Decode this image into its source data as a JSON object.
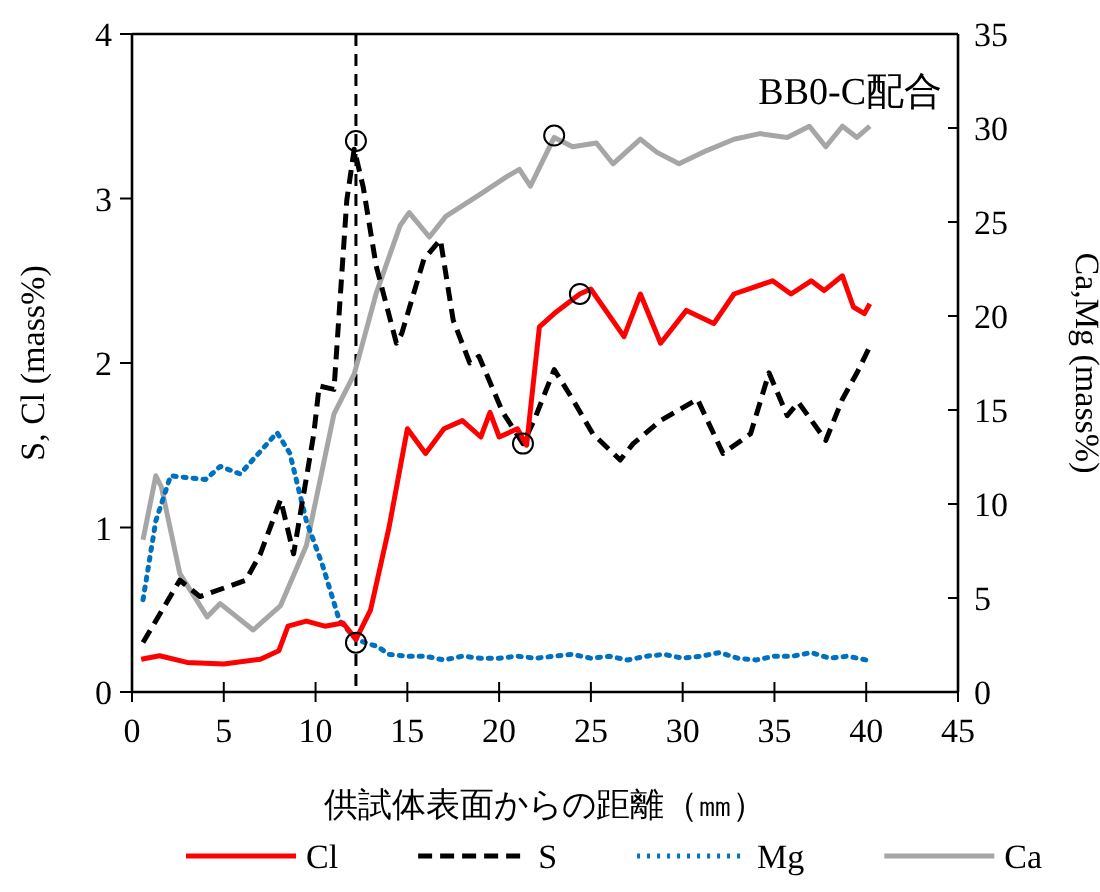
{
  "chart_data": {
    "type": "line",
    "title": "BB0-C配合",
    "xlabel": "供試体表面からの距離（㎜）",
    "ylabel": "S, Cl (mass%)",
    "y2label": "Ca,Mg (mass%)",
    "xlim": [
      0,
      45
    ],
    "xticks": [
      0,
      5,
      10,
      15,
      20,
      25,
      30,
      35,
      40,
      45
    ],
    "ylim": [
      0,
      4
    ],
    "yticks": [
      0,
      1,
      2,
      3,
      4
    ],
    "y2lim": [
      0,
      35
    ],
    "y2ticks": [
      0,
      5,
      10,
      15,
      20,
      25,
      30,
      35
    ],
    "grid": false,
    "legend": "bottom",
    "ref_lines": [
      {
        "axis": "x",
        "value": 12.2,
        "color": "#000000",
        "line_style": "dashed"
      }
    ],
    "series": [
      {
        "name": "Cl",
        "color": "#ff0000",
        "line_style": "solid",
        "x": [
          0.5,
          1.5,
          3,
          5,
          7,
          8,
          8.5,
          9.5,
          10.5,
          11.5,
          12.2,
          13,
          14,
          15,
          16,
          17,
          18,
          19,
          19.5,
          20,
          21,
          21.5,
          22.2,
          23,
          24.4,
          25,
          26.8,
          27.7,
          28.8,
          30.2,
          31.7,
          32.8,
          34.9,
          35.9,
          37,
          37.7,
          38.7,
          39.3,
          39.9,
          40.2
        ],
        "values": [
          0.2,
          0.22,
          0.18,
          0.17,
          0.2,
          0.25,
          0.4,
          0.43,
          0.4,
          0.42,
          0.32,
          0.5,
          1.0,
          1.6,
          1.45,
          1.6,
          1.65,
          1.55,
          1.7,
          1.55,
          1.6,
          1.5,
          2.22,
          2.3,
          2.42,
          2.45,
          2.16,
          2.42,
          2.12,
          2.32,
          2.24,
          2.42,
          2.5,
          2.42,
          2.5,
          2.44,
          2.53,
          2.34,
          2.3,
          2.36
        ]
      },
      {
        "name": "S",
        "color": "#000000",
        "line_style": "dashed",
        "x": [
          0.6,
          2.6,
          3.7,
          6.2,
          7,
          8.1,
          8.8,
          9.9,
          10.2,
          11,
          11.7,
          12.1,
          12.6,
          13.3,
          14.4,
          14.7,
          15.9,
          16.8,
          17.5,
          18.4,
          18.9,
          20.2,
          21.3,
          21.9,
          23,
          24,
          25.1,
          26.6,
          27.3,
          28.8,
          30.8,
          32.2,
          33.7,
          34.7,
          35.7,
          36.3,
          37.8,
          38.7,
          39.5,
          40.2
        ],
        "values": [
          0.3,
          0.68,
          0.58,
          0.68,
          0.84,
          1.17,
          0.84,
          1.57,
          1.86,
          1.84,
          2.99,
          3.3,
          3.07,
          2.59,
          2.12,
          2.18,
          2.63,
          2.75,
          2.26,
          2.0,
          2.04,
          1.7,
          1.51,
          1.65,
          1.96,
          1.78,
          1.57,
          1.41,
          1.51,
          1.65,
          1.78,
          1.45,
          1.57,
          1.94,
          1.68,
          1.76,
          1.53,
          1.78,
          1.94,
          2.1
        ]
      },
      {
        "name": "Mg",
        "color": "#0070c0",
        "line_style": "dotted",
        "axis": "y2",
        "x": [
          0.6,
          1.3,
          2.1,
          4,
          4.8,
          5.9,
          7.9,
          8.6,
          9.5,
          10.4,
          11.3,
          12.2,
          13.4,
          14,
          15,
          16,
          17,
          18,
          19,
          20,
          21,
          22,
          23,
          24,
          25,
          26,
          27,
          28,
          29,
          30,
          31,
          32,
          33,
          34,
          35,
          36,
          37,
          38,
          39,
          40
        ],
        "values": [
          4.9,
          9.1,
          11.5,
          11.3,
          12.0,
          11.6,
          13.8,
          12.7,
          9.1,
          6.7,
          3.8,
          2.8,
          2.4,
          2.0,
          1.9,
          1.9,
          1.7,
          1.9,
          1.8,
          1.8,
          1.9,
          1.8,
          1.9,
          2.0,
          1.8,
          1.9,
          1.7,
          1.9,
          2.0,
          1.8,
          1.9,
          2.1,
          1.8,
          1.7,
          1.9,
          1.9,
          2.1,
          1.8,
          1.9,
          1.7
        ]
      },
      {
        "name": "Ca",
        "color": "#a6a6a6",
        "line_style": "solid",
        "axis": "y2",
        "x": [
          0.6,
          1.3,
          1.6,
          2.6,
          4.1,
          4.8,
          6.6,
          8.1,
          9.5,
          11,
          12.1,
          13.3,
          14.6,
          15.1,
          16.2,
          17.1,
          19,
          20.4,
          21.1,
          21.7,
          23,
          24,
          25.3,
          26.2,
          27.7,
          28.6,
          29.8,
          31.3,
          32.8,
          34.2,
          35.7,
          36.9,
          37.8,
          38.7,
          39.5,
          40.2
        ],
        "values": [
          8.1,
          11.5,
          10.9,
          6.3,
          4.0,
          4.7,
          3.3,
          4.6,
          7.8,
          14.8,
          16.9,
          21.2,
          24.8,
          25.5,
          24.2,
          25.3,
          26.5,
          27.4,
          27.8,
          26.9,
          29.5,
          29.0,
          29.2,
          28.1,
          29.4,
          28.7,
          28.1,
          28.8,
          29.4,
          29.7,
          29.5,
          30.1,
          29.0,
          30.1,
          29.5,
          30.1
        ]
      },
      {
        "type": "scatter",
        "marker": "circle",
        "color": "#000000",
        "x": [
          12.2,
          12.2,
          21.3,
          24.4
        ],
        "values": [
          3.35,
          0.3,
          1.51,
          2.42
        ]
      },
      {
        "type": "scatter",
        "marker": "circle",
        "color": "#000000",
        "axis": "y2",
        "x": [
          23.0
        ],
        "values": [
          29.6
        ]
      }
    ]
  }
}
